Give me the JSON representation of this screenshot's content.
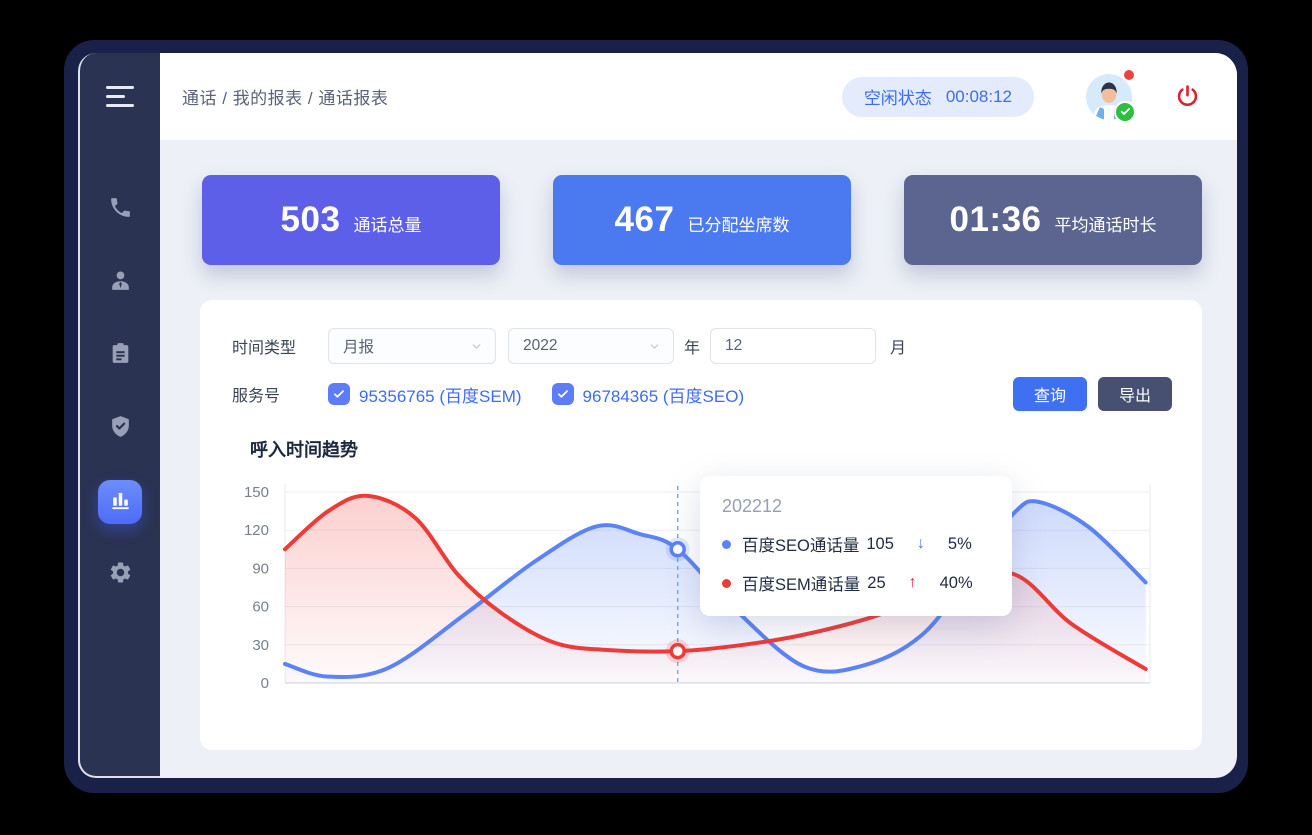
{
  "header": {
    "breadcrumb": "通话 / 我的报表 / 通话报表",
    "status": {
      "label": "空闲状态",
      "timer": "00:08:12"
    }
  },
  "sidebar": {
    "items": [
      {
        "icon": "phone-icon",
        "active": false
      },
      {
        "icon": "user-icon",
        "active": false
      },
      {
        "icon": "clipboard-icon",
        "active": false
      },
      {
        "icon": "shield-check-icon",
        "active": false
      },
      {
        "icon": "bar-chart-icon",
        "active": true
      },
      {
        "icon": "gear-icon",
        "active": false
      }
    ]
  },
  "stats": [
    {
      "value": "503",
      "label": "通话总量",
      "color": "#5d5fe8"
    },
    {
      "value": "467",
      "label": "已分配坐席数",
      "color": "#4a79f0"
    },
    {
      "value": "01:36",
      "label": "平均通话时长",
      "color": "#5c6590"
    }
  ],
  "filters": {
    "time_type_label": "时间类型",
    "time_type_value": "月报",
    "year_value": "2022",
    "year_suffix": "年",
    "month_value": "12",
    "month_suffix": "月",
    "service_label": "服务号",
    "services": [
      {
        "checked": true,
        "label": "95356765 (百度SEM)"
      },
      {
        "checked": true,
        "label": "96784365 (百度SEO)"
      }
    ],
    "query_button": "查询",
    "export_button": "导出"
  },
  "chart_data": {
    "type": "line",
    "title": "呼入时间趋势",
    "xlabel": "",
    "ylabel": "",
    "ylim": [
      0,
      150
    ],
    "yticks": [
      0,
      30,
      60,
      90,
      120,
      150
    ],
    "grid": true,
    "legend_position": "none",
    "series": [
      {
        "name": "百度SEO通话量",
        "color": "#5b83f5",
        "points": [
          [
            0,
            15
          ],
          [
            5,
            5
          ],
          [
            12,
            12
          ],
          [
            21,
            55
          ],
          [
            29,
            96
          ],
          [
            36,
            123
          ],
          [
            41,
            117
          ],
          [
            45.4,
            105
          ],
          [
            52,
            58
          ],
          [
            60,
            13
          ],
          [
            67,
            14
          ],
          [
            74,
            40
          ],
          [
            80,
            95
          ],
          [
            84.5,
            135
          ],
          [
            87.3,
            142
          ],
          [
            93,
            122
          ],
          [
            99.5,
            79
          ]
        ]
      },
      {
        "name": "百度SEM通话量",
        "color": "#ee3b37",
        "points": [
          [
            0,
            105
          ],
          [
            5,
            135
          ],
          [
            9.5,
            147
          ],
          [
            15,
            130
          ],
          [
            20,
            85
          ],
          [
            25,
            55
          ],
          [
            31,
            32
          ],
          [
            37,
            26
          ],
          [
            45.4,
            25
          ],
          [
            53,
            30
          ],
          [
            60,
            38
          ],
          [
            68,
            52
          ],
          [
            76,
            72
          ],
          [
            84,
            86
          ],
          [
            91,
            46
          ],
          [
            99.5,
            11
          ]
        ]
      }
    ],
    "marker": {
      "x_percent": 45.4,
      "values": [
        105,
        25
      ]
    },
    "tooltip": {
      "title": "202212",
      "rows": [
        {
          "name": "百度SEO通话量",
          "value": "105",
          "arrow": "↓",
          "arrow_color": "#4a6ff0",
          "percent": "5%",
          "color": "#5b83f5"
        },
        {
          "name": "百度SEM通话量",
          "value": "25",
          "arrow": "↑",
          "arrow_color": "#e8282d",
          "percent": "40%",
          "color": "#ee3b37"
        }
      ]
    }
  }
}
